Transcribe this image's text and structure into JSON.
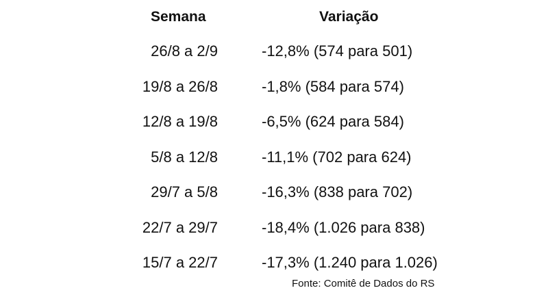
{
  "table": {
    "headers": {
      "week": "Semana",
      "change": "Variação"
    },
    "rows": [
      {
        "week": "26/8 a 2/9",
        "change": "-12,8% (574 para 501)"
      },
      {
        "week": "19/8 a 26/8",
        "change": "-1,8% (584 para 574)"
      },
      {
        "week": "12/8 a 19/8",
        "change": "-6,5% (624 para 584)"
      },
      {
        "week": "5/8 a 12/8",
        "change": "-11,1% (702 para 624)"
      },
      {
        "week": "29/7 a 5/8",
        "change": "-16,3% (838 para 702)"
      },
      {
        "week": "22/7 a 29/7",
        "change": "-18,4% (1.026 para 838)"
      },
      {
        "week": "15/7 a 22/7",
        "change": "-17,3% (1.240 para 1.026)"
      }
    ]
  },
  "source": "Fonte: Comitê de Dados do RS"
}
